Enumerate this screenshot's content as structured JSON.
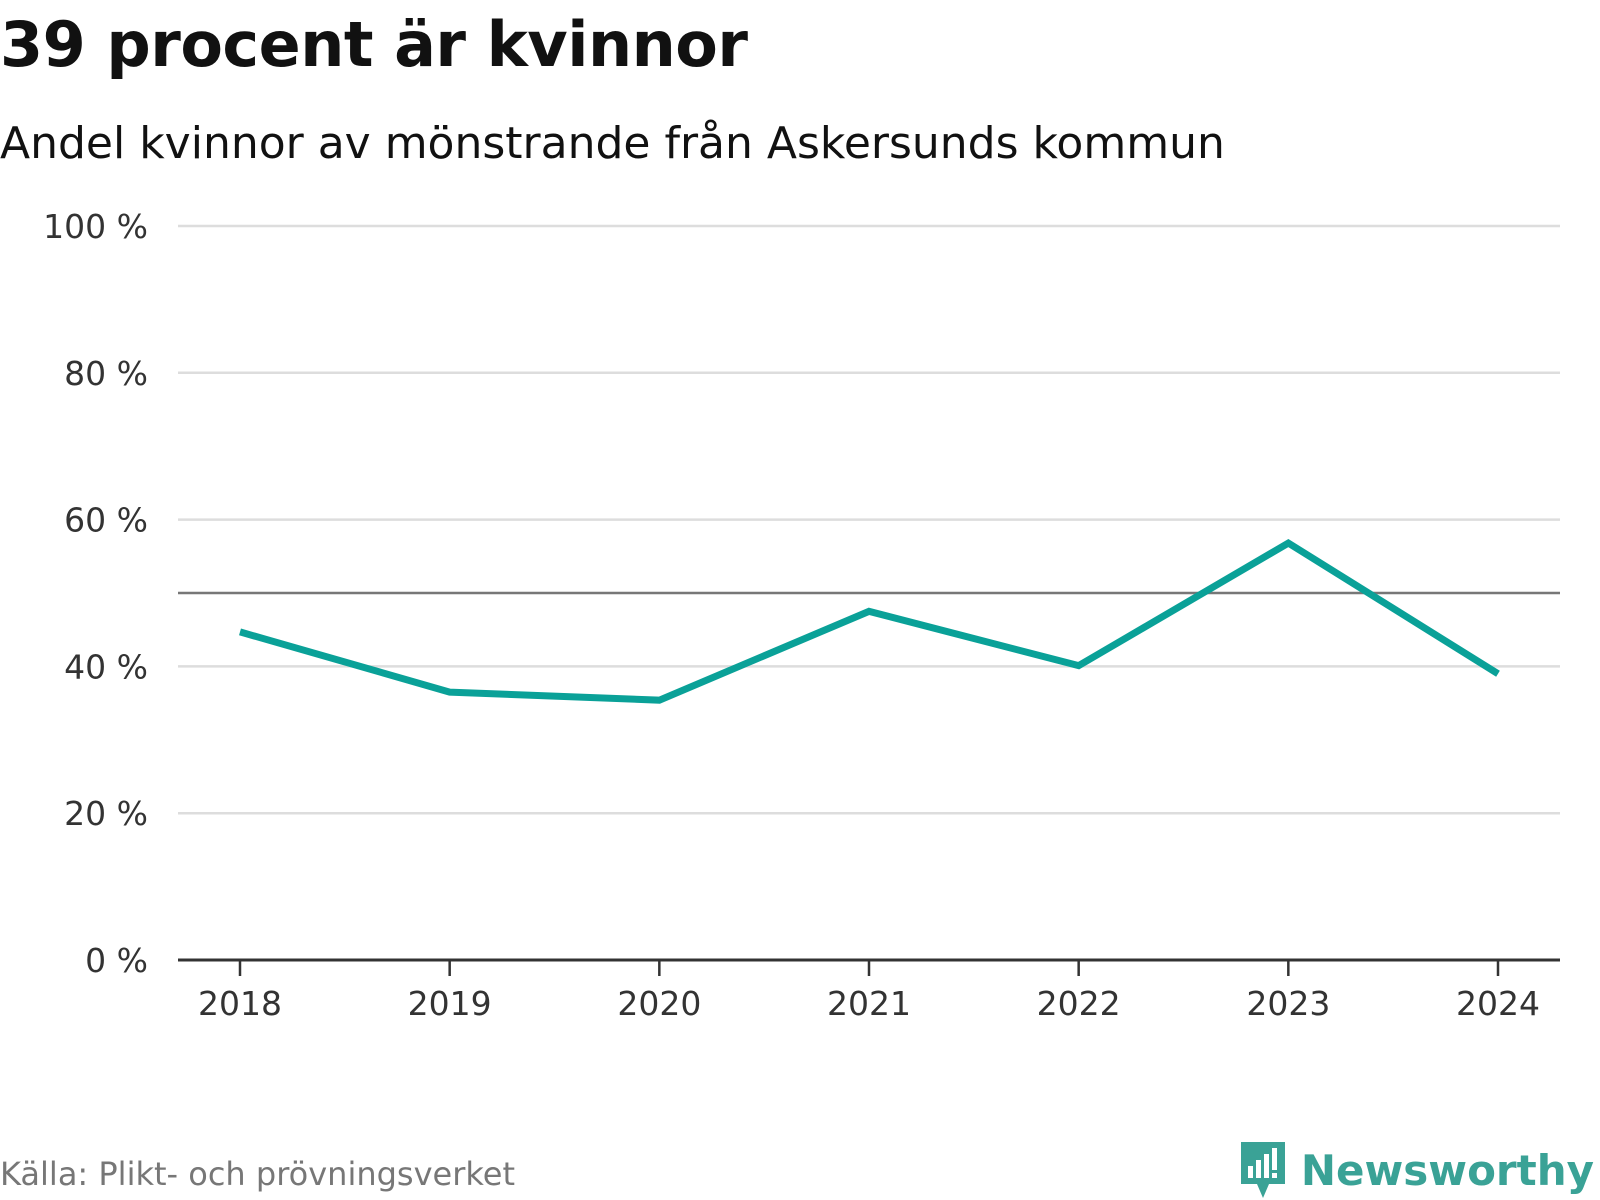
{
  "header": {
    "title": "39 procent är kvinnor",
    "subtitle": "Andel kvinnor av mönstrande från Askersunds kommun"
  },
  "footer": {
    "source": "Källa: Plikt- och prövningsverket",
    "brand": "Newsworthy",
    "brand_icon": "newsworthy-logo-icon"
  },
  "colors": {
    "line": "#0aa198",
    "grid": "#dddddd",
    "reference": "#777777",
    "axis": "#333333",
    "brand": "#3aa296"
  },
  "chart_data": {
    "type": "line",
    "title": "39 procent är kvinnor",
    "subtitle": "Andel kvinnor av mönstrande från Askersunds kommun",
    "xlabel": "",
    "ylabel": "",
    "x": [
      "2018",
      "2019",
      "2020",
      "2021",
      "2022",
      "2023",
      "2024"
    ],
    "series": [
      {
        "name": "Andel kvinnor",
        "values": [
          44.7,
          36.5,
          35.4,
          47.5,
          40.1,
          56.8,
          39.0
        ]
      }
    ],
    "ylim": [
      0,
      100
    ],
    "yticks": [
      0,
      20,
      40,
      60,
      80,
      100
    ],
    "ytick_labels": [
      "0 %",
      "20 %",
      "40 %",
      "60 %",
      "80 %",
      "100 %"
    ],
    "reference_line": 50,
    "grid": true,
    "legend": "none"
  }
}
